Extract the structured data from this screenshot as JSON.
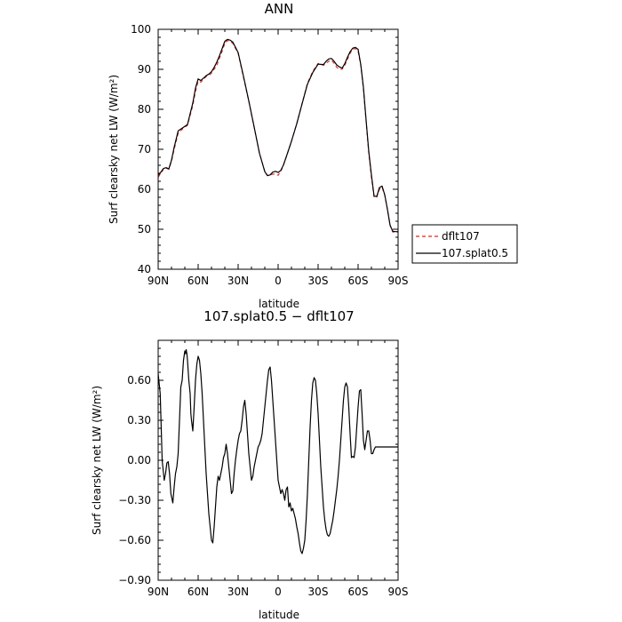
{
  "chart_data": [
    {
      "type": "line",
      "title": "ANN",
      "xlabel": "latitude",
      "ylabel": "Surf clearsky net LW (W/m²)",
      "xlim": [
        90,
        -90
      ],
      "ylim": [
        40,
        100
      ],
      "xticks": [
        90,
        60,
        30,
        0,
        -30,
        -60,
        -90
      ],
      "xtick_labels": [
        "90N",
        "60N",
        "30N",
        "0",
        "30S",
        "60S",
        "90S"
      ],
      "yticks": [
        40,
        50,
        60,
        70,
        80,
        90,
        100
      ],
      "ytick_labels": [
        "40",
        "50",
        "60",
        "70",
        "80",
        "90",
        "100"
      ],
      "grid": false,
      "legend_position": "outside-right-bottom",
      "series": [
        {
          "name": "dflt107",
          "color": "#e0241d",
          "dash": true,
          "x": [
            90,
            88,
            86,
            84,
            82,
            80,
            78,
            75,
            72,
            68,
            64,
            62,
            60,
            58,
            56,
            54,
            52,
            50,
            48,
            46,
            44,
            42,
            40,
            38,
            36,
            34,
            30,
            26,
            22,
            18,
            14,
            10,
            8,
            6,
            4,
            2,
            0,
            -2,
            -4,
            -6,
            -10,
            -14,
            -18,
            -22,
            -26,
            -30,
            -34,
            -36,
            -38,
            -40,
            -42,
            -44,
            -46,
            -48,
            -50,
            -52,
            -54,
            -56,
            -58,
            -60,
            -62,
            -64,
            -66,
            -68,
            -70,
            -72,
            -74,
            -76,
            -78,
            -80,
            -82,
            -84,
            -86,
            -88,
            -90
          ],
          "values": [
            63,
            64,
            65,
            65.3,
            65,
            67,
            70,
            74,
            75,
            76,
            81,
            84.5,
            87,
            86.8,
            87.5,
            88.2,
            88.5,
            89,
            90,
            91,
            92.8,
            94.5,
            96.5,
            97.2,
            97,
            96.5,
            94,
            88,
            82,
            75.5,
            69,
            64.5,
            63.5,
            63.5,
            63.8,
            63.8,
            63.5,
            64.5,
            66,
            68,
            72,
            76.5,
            81.5,
            86.5,
            89.5,
            91.5,
            91,
            91.5,
            92,
            92.3,
            91.5,
            90.5,
            90,
            90,
            91,
            92.5,
            94,
            95,
            95.2,
            94.5,
            91,
            85,
            77,
            69,
            63,
            58,
            58,
            60,
            60.5,
            58.5,
            55,
            51,
            49.3,
            49.3,
            49.3
          ]
        },
        {
          "name": "107.splat0.5",
          "color": "#000000",
          "dash": false,
          "x": [
            90,
            88,
            86,
            84,
            82,
            80,
            78,
            75,
            72,
            68,
            64,
            62,
            60,
            58,
            56,
            54,
            52,
            50,
            48,
            46,
            44,
            42,
            40,
            38,
            36,
            34,
            30,
            26,
            22,
            18,
            14,
            10,
            8,
            6,
            4,
            2,
            0,
            -2,
            -4,
            -6,
            -10,
            -14,
            -18,
            -22,
            -26,
            -30,
            -34,
            -36,
            -38,
            -40,
            -42,
            -44,
            -46,
            -48,
            -50,
            -52,
            -54,
            -56,
            -58,
            -60,
            -62,
            -64,
            -66,
            -68,
            -70,
            -72,
            -74,
            -76,
            -78,
            -80,
            -82,
            -84,
            -86,
            -88,
            -90
          ],
          "values": [
            63.5,
            64.3,
            65.2,
            65.4,
            65.1,
            67.3,
            70.5,
            74.6,
            75.3,
            76.2,
            81.6,
            85.3,
            87.6,
            87.2,
            87.8,
            88.4,
            88.8,
            89.4,
            90.5,
            91.8,
            93.4,
            95.2,
            97,
            97.5,
            97.3,
            96.8,
            94.2,
            88.3,
            82.1,
            75.6,
            69,
            64.4,
            63.4,
            63.6,
            64.3,
            64.5,
            64.2,
            64.7,
            66.1,
            68,
            72,
            76.4,
            81.4,
            86.3,
            89.2,
            91.3,
            91.2,
            92,
            92.6,
            92.7,
            92,
            91.1,
            90.6,
            90.3,
            91.4,
            93,
            94.4,
            95.3,
            95.5,
            95,
            91.2,
            85.5,
            77.3,
            69.5,
            63.6,
            58.3,
            58.2,
            60.4,
            60.8,
            58.6,
            55,
            51,
            49.5,
            49.4,
            49.4
          ]
        }
      ]
    },
    {
      "type": "line",
      "title": "107.splat0.5 − dflt107",
      "xlabel": "latitude",
      "ylabel": "Surf clearsky net LW (W/m²)",
      "xlim": [
        90,
        -90
      ],
      "ylim": [
        -0.9,
        0.9
      ],
      "xticks": [
        90,
        60,
        30,
        0,
        -30,
        -60,
        -90
      ],
      "xtick_labels": [
        "90N",
        "60N",
        "30N",
        "0",
        "30S",
        "60S",
        "90S"
      ],
      "yticks": [
        -0.9,
        -0.6,
        -0.3,
        0,
        0.3,
        0.6
      ],
      "ytick_labels": [
        "−0.90",
        "−0.60",
        "−0.30",
        "0.00",
        "0.30",
        "0.60"
      ],
      "grid": false,
      "series": [
        {
          "name": "",
          "color": "#000000",
          "dash": false,
          "x": [
            90,
            88.5,
            87,
            85.5,
            84.5,
            83.5,
            82.5,
            81.5,
            80.5,
            79,
            78,
            77,
            76,
            75,
            74,
            73,
            72,
            71,
            70,
            69.5,
            69,
            68.5,
            68,
            67,
            66,
            65.5,
            65,
            64,
            63,
            62,
            61,
            60,
            59,
            58,
            57,
            56,
            55,
            54,
            53,
            52,
            51,
            50,
            49,
            48,
            47,
            46,
            45,
            44,
            43,
            42,
            41,
            40,
            39,
            38,
            37,
            36,
            35,
            34,
            33,
            32,
            31,
            30,
            29,
            28,
            27,
            26,
            25,
            24,
            23,
            22,
            21,
            20,
            19,
            18,
            17,
            16,
            15,
            14,
            13,
            12,
            11,
            10,
            9,
            8,
            7,
            6,
            5,
            4,
            3,
            2,
            1,
            0,
            -1,
            -2,
            -3,
            -4,
            -5,
            -6,
            -7,
            -8,
            -9,
            -10,
            -11,
            -12,
            -13,
            -14,
            -15,
            -16,
            -17,
            -18,
            -19,
            -20,
            -21,
            -22,
            -23,
            -24,
            -25,
            -26,
            -27,
            -28,
            -29,
            -30,
            -31,
            -32,
            -33,
            -34,
            -35,
            -36,
            -37,
            -38,
            -39,
            -40,
            -41,
            -42,
            -43,
            -44,
            -45,
            -46,
            -47,
            -48,
            -49,
            -50,
            -51,
            -52,
            -53,
            -54,
            -55,
            -56,
            -57,
            -58,
            -59,
            -60,
            -61,
            -62,
            -63,
            -64,
            -65,
            -66,
            -67,
            -68,
            -69,
            -70,
            -71,
            -72,
            -73,
            -74,
            -75,
            -76,
            -77,
            -78,
            -79,
            -80,
            -81,
            -82,
            -83,
            -84,
            -85,
            -86,
            -87,
            -88,
            -89,
            -90
          ],
          "values": [
            0.65,
            0.5,
            0.0,
            -0.15,
            -0.1,
            -0.02,
            -0.01,
            -0.1,
            -0.25,
            -0.32,
            -0.2,
            -0.1,
            -0.05,
            0.05,
            0.3,
            0.55,
            0.6,
            0.75,
            0.82,
            0.8,
            0.83,
            0.8,
            0.75,
            0.6,
            0.5,
            0.35,
            0.3,
            0.22,
            0.4,
            0.6,
            0.72,
            0.78,
            0.75,
            0.65,
            0.5,
            0.3,
            0.1,
            -0.1,
            -0.25,
            -0.4,
            -0.5,
            -0.6,
            -0.62,
            -0.5,
            -0.35,
            -0.2,
            -0.12,
            -0.15,
            -0.1,
            -0.05,
            0.02,
            0.05,
            0.12,
            0.05,
            -0.05,
            -0.15,
            -0.25,
            -0.23,
            -0.1,
            0.0,
            0.08,
            0.15,
            0.2,
            0.22,
            0.3,
            0.4,
            0.45,
            0.35,
            0.2,
            0.05,
            -0.05,
            -0.15,
            -0.12,
            -0.05,
            0.0,
            0.05,
            0.1,
            0.12,
            0.15,
            0.2,
            0.3,
            0.4,
            0.5,
            0.6,
            0.68,
            0.7,
            0.6,
            0.45,
            0.3,
            0.15,
            0.0,
            -0.15,
            -0.2,
            -0.25,
            -0.22,
            -0.25,
            -0.3,
            -0.22,
            -0.2,
            -0.35,
            -0.32,
            -0.38,
            -0.36,
            -0.4,
            -0.44,
            -0.5,
            -0.55,
            -0.62,
            -0.68,
            -0.7,
            -0.66,
            -0.6,
            -0.45,
            -0.25,
            0.0,
            0.25,
            0.45,
            0.58,
            0.62,
            0.6,
            0.5,
            0.35,
            0.15,
            -0.05,
            -0.2,
            -0.35,
            -0.45,
            -0.52,
            -0.56,
            -0.57,
            -0.55,
            -0.5,
            -0.45,
            -0.38,
            -0.3,
            -0.22,
            -0.12,
            0.0,
            0.15,
            0.3,
            0.45,
            0.55,
            0.58,
            0.55,
            0.4,
            0.2,
            0.02,
            0.03,
            0.02,
            0.1,
            0.25,
            0.4,
            0.52,
            0.53,
            0.35,
            0.15,
            0.08,
            0.15,
            0.22,
            0.22,
            0.15,
            0.05,
            0.05,
            0.08,
            0.1,
            0.1,
            0.1,
            0.1,
            0.1,
            0.1,
            0.1,
            0.1,
            0.1,
            0.1,
            0.1,
            0.1,
            0.1,
            0.1,
            0.1,
            0.1,
            0.1,
            0.1
          ]
        }
      ]
    }
  ]
}
